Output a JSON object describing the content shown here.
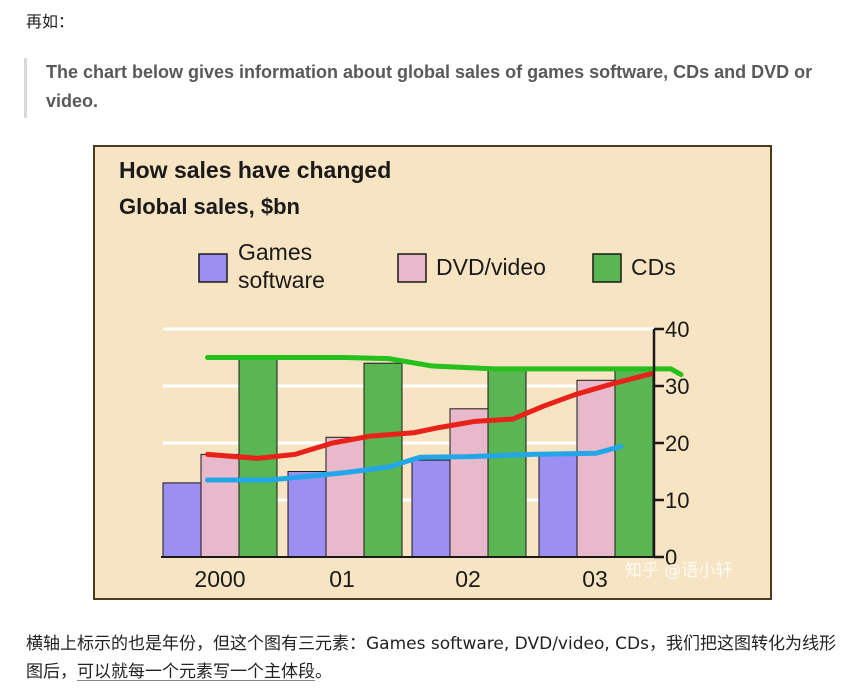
{
  "intro": "再如：",
  "quote": "The chart below gives information about global sales of games software, CDs and DVD or video.",
  "footer": {
    "text": "横轴上标示的也是年份，但这个图有三元素：Games software, DVD/video, CDs，我们把这图转化为线形图后，",
    "link": "可以就每一个元素写一个主体段",
    "end": "。"
  },
  "watermark": "知乎 @语小轩",
  "chart_data": {
    "type": "bar",
    "title": "How sales have changed",
    "subtitle": "Global sales, $bn",
    "categories": [
      "2000",
      "01",
      "02",
      "03"
    ],
    "ylim": [
      0,
      40
    ],
    "yticks": [
      "0",
      "10",
      "20",
      "30",
      "40"
    ],
    "legend_position": "top",
    "series": [
      {
        "name": "Games software",
        "color": "#9b8ff2",
        "values": [
          13,
          15,
          17,
          18
        ]
      },
      {
        "name": "DVD/video",
        "color": "#e8b8cb",
        "values": [
          18,
          21,
          26,
          31
        ]
      },
      {
        "name": "CDs",
        "color": "#5ab553",
        "values": [
          35,
          34,
          33,
          33
        ]
      }
    ],
    "overlay_lines": [
      {
        "color": "#22a6e8",
        "points": [
          [
            -0.1,
            13.5
          ],
          [
            0.4,
            13.5
          ],
          [
            1.0,
            14.8
          ],
          [
            1.35,
            15.8
          ],
          [
            1.6,
            17.5
          ],
          [
            2.0,
            17.6
          ],
          [
            2.5,
            18
          ],
          [
            3.0,
            18.2
          ],
          [
            3.2,
            19.4
          ]
        ]
      },
      {
        "color": "#e82119",
        "points": [
          [
            -0.1,
            18
          ],
          [
            0.3,
            17.3
          ],
          [
            0.6,
            18
          ],
          [
            0.9,
            20
          ],
          [
            1.2,
            21.2
          ],
          [
            1.55,
            21.8
          ],
          [
            1.75,
            22.7
          ],
          [
            2.05,
            23.8
          ],
          [
            2.35,
            24.2
          ],
          [
            2.6,
            26.5
          ],
          [
            2.85,
            28.5
          ],
          [
            3.15,
            30.5
          ],
          [
            3.45,
            32.2
          ]
        ]
      },
      {
        "color": "#25c01b",
        "points": [
          [
            -0.1,
            35
          ],
          [
            0.4,
            35
          ],
          [
            1.0,
            35
          ],
          [
            1.35,
            34.8
          ],
          [
            1.7,
            33.5
          ],
          [
            2.2,
            33
          ],
          [
            2.6,
            33
          ],
          [
            3.2,
            33
          ],
          [
            3.6,
            33
          ],
          [
            3.68,
            32
          ]
        ]
      }
    ]
  }
}
